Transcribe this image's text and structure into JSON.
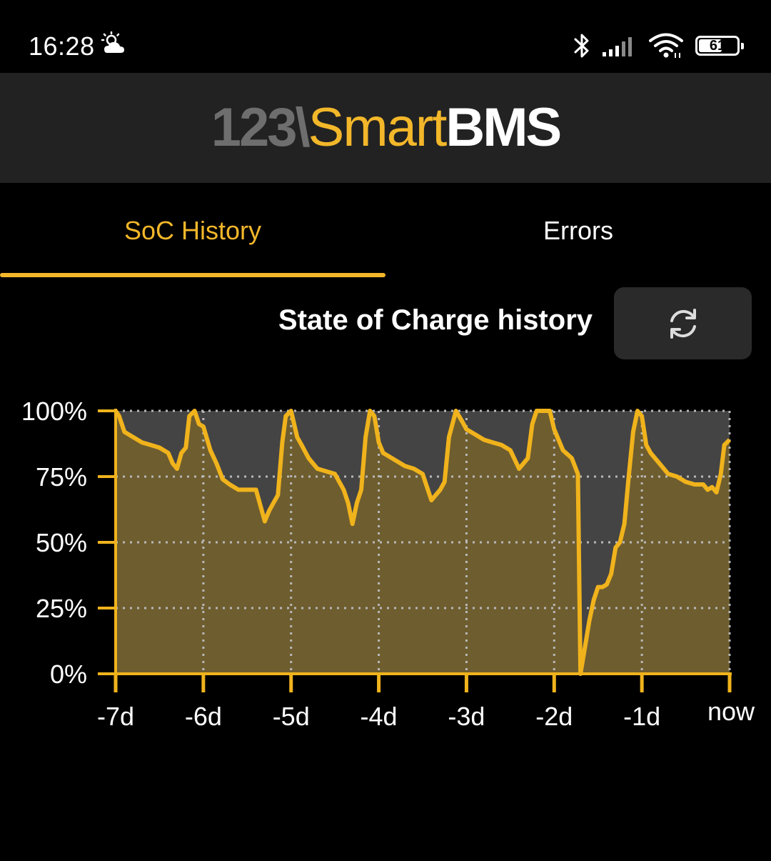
{
  "status_bar": {
    "time": "16:28",
    "weather_icon": "partly-cloudy-icon",
    "bluetooth_icon": "bluetooth-icon",
    "signal_icon": "cellular-signal-icon",
    "wifi_icon": "wifi-icon",
    "battery_level": "61",
    "battery_fraction": 0.61
  },
  "header": {
    "logo_part1": "123\\",
    "logo_part2": "Smart",
    "logo_part3": "BMS"
  },
  "tabs": [
    {
      "label": "SoC History",
      "active": true
    },
    {
      "label": "Errors",
      "active": false
    }
  ],
  "chart_section": {
    "title": "State of Charge history",
    "refresh_icon": "refresh-icon"
  },
  "colors": {
    "accent": "#f3b72a",
    "header_bg": "#222222",
    "line": "#f0b31c",
    "fill": "#6e5d2f",
    "plot_bg": "#444444"
  },
  "chart_data": {
    "type": "area",
    "title": "",
    "xlabel": "",
    "ylabel": "",
    "xlim": [
      -7,
      0
    ],
    "ylim": [
      0,
      100
    ],
    "grid": true,
    "x_ticks": [
      -7,
      -6,
      -5,
      -4,
      -3,
      -2,
      -1,
      0
    ],
    "x_tick_labels": [
      "-7d",
      "-6d",
      "-5d",
      "-4d",
      "-3d",
      "-2d",
      "-1d",
      "now"
    ],
    "y_ticks": [
      0,
      25,
      50,
      75,
      100
    ],
    "y_tick_labels": [
      "0%",
      "25%",
      "50%",
      "75%",
      "100%"
    ],
    "series": [
      {
        "x": [
          -7.0,
          -6.96,
          -6.9,
          -6.8,
          -6.7,
          -6.6,
          -6.5,
          -6.4,
          -6.35,
          -6.3,
          -6.25,
          -6.2,
          -6.16,
          -6.1,
          -6.05,
          -6.0,
          -5.92,
          -5.85,
          -5.78,
          -5.7,
          -5.6,
          -5.5,
          -5.4,
          -5.3,
          -5.25,
          -5.2,
          -5.15,
          -5.1,
          -5.06,
          -5.0,
          -4.93,
          -4.88,
          -4.8,
          -4.7,
          -4.6,
          -4.5,
          -4.4,
          -4.35,
          -4.3,
          -4.25,
          -4.2,
          -4.15,
          -4.1,
          -4.05,
          -4.0,
          -3.95,
          -3.9,
          -3.8,
          -3.7,
          -3.6,
          -3.5,
          -3.4,
          -3.35,
          -3.3,
          -3.25,
          -3.2,
          -3.12,
          -3.05,
          -3.0,
          -2.9,
          -2.8,
          -2.7,
          -2.6,
          -2.5,
          -2.4,
          -2.35,
          -2.3,
          -2.25,
          -2.2,
          -2.12,
          -2.05,
          -2.0,
          -1.9,
          -1.8,
          -1.73,
          -1.7,
          -1.65,
          -1.6,
          -1.55,
          -1.5,
          -1.45,
          -1.4,
          -1.35,
          -1.3,
          -1.25,
          -1.2,
          -1.15,
          -1.1,
          -1.05,
          -1.0,
          -0.95,
          -0.9,
          -0.8,
          -0.7,
          -0.6,
          -0.5,
          -0.4,
          -0.3,
          -0.25,
          -0.2,
          -0.15,
          -0.1,
          -0.06,
          0.0
        ],
        "values": [
          100,
          98,
          92,
          90,
          88,
          87,
          86,
          84,
          80,
          78,
          84,
          86,
          98,
          100,
          95,
          94,
          85,
          80,
          74,
          72,
          70,
          70,
          70,
          58,
          62,
          65,
          68,
          88,
          98,
          100,
          90,
          87,
          82,
          78,
          77,
          76,
          70,
          65,
          57,
          65,
          70,
          90,
          100,
          98,
          88,
          84,
          83,
          81,
          79,
          78,
          76,
          66,
          68,
          70,
          73,
          90,
          100,
          96,
          93,
          91,
          89,
          88,
          87,
          85,
          78,
          80,
          82,
          95,
          100,
          100,
          100,
          93,
          85,
          82,
          76,
          0,
          10,
          20,
          28,
          33,
          33,
          34,
          38,
          48,
          50,
          57,
          75,
          92,
          100,
          98,
          87,
          84,
          80,
          76,
          75,
          73,
          72,
          72,
          70,
          71,
          69,
          76,
          87,
          89
        ]
      }
    ]
  }
}
